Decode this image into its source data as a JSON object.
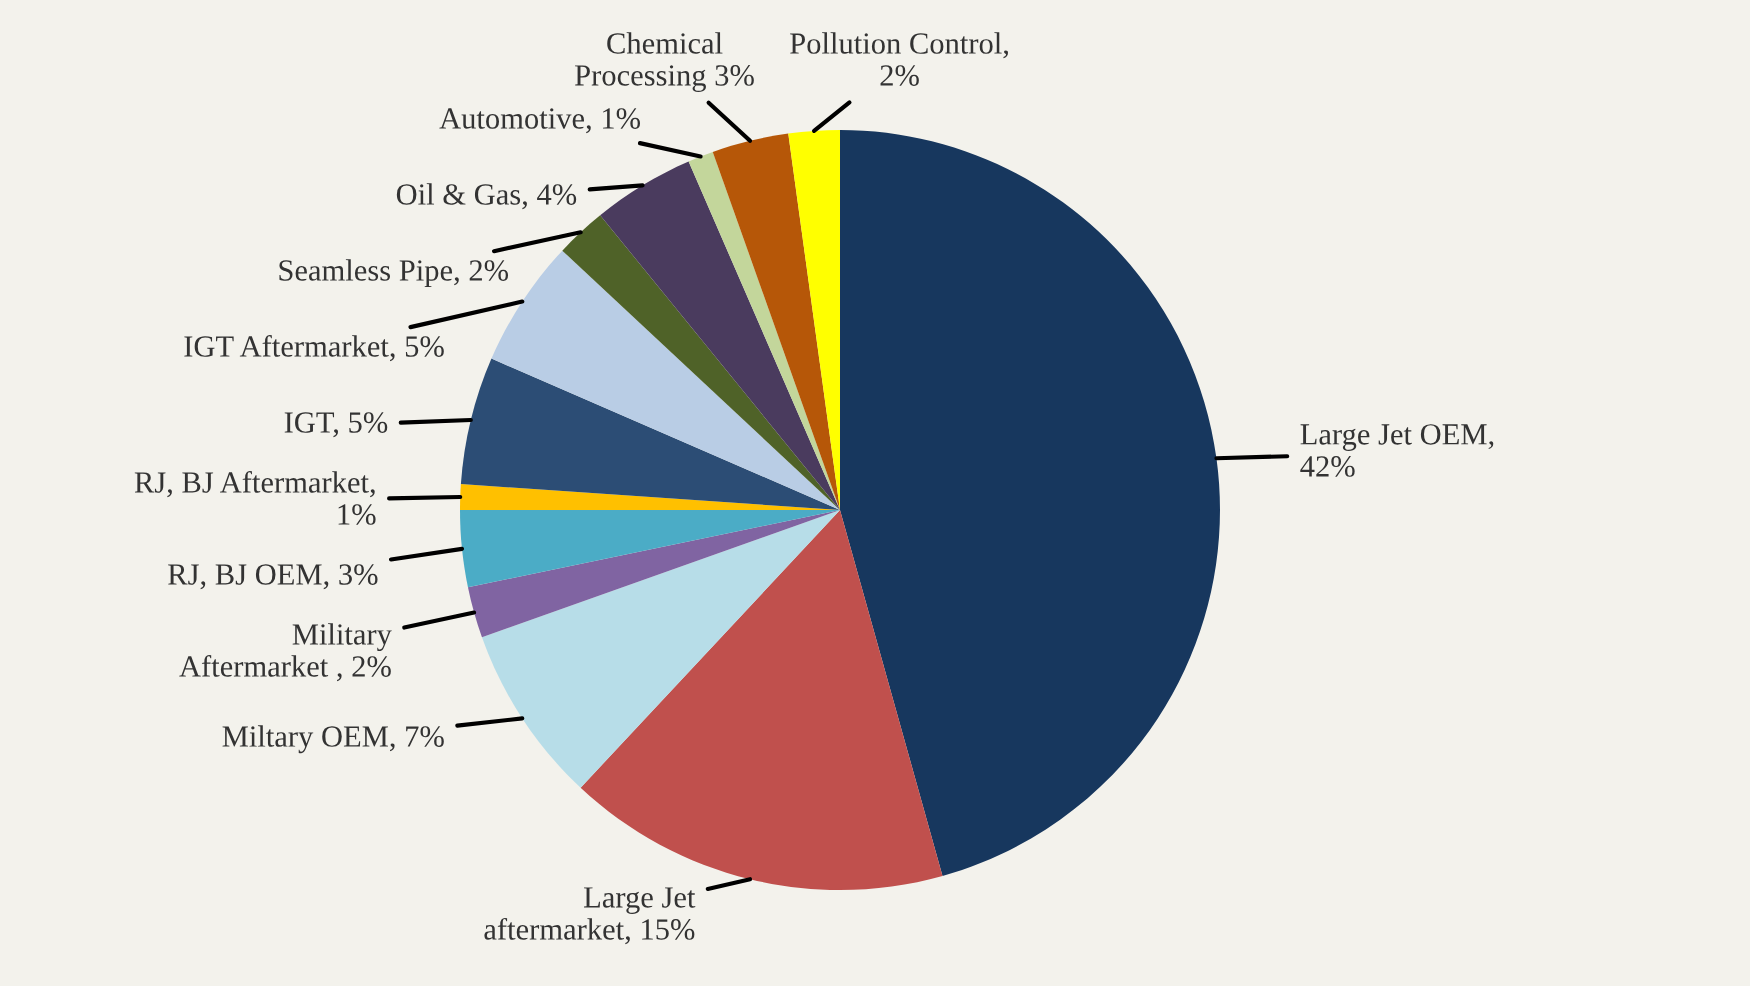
{
  "chart_data": {
    "type": "pie",
    "categories": [
      "Large Jet OEM",
      "Large Jet\naftermarket",
      "Miltary OEM",
      "Military\nAftermarket",
      "RJ, BJ OEM",
      "RJ, BJ Aftermarket",
      "IGT",
      "IGT Aftermarket",
      "Seamless Pipe",
      "Oil & Gas",
      "Automotive",
      "Chemical\nProcessing",
      "Pollution Control"
    ],
    "values": [
      42,
      15,
      7,
      2,
      3,
      1,
      5,
      5,
      2,
      4,
      1,
      3,
      2
    ],
    "value_labels": [
      ",\n42%",
      ", 15%",
      ", 7%",
      " , 2%",
      ", 3%",
      ",\n1%",
      ", 5%",
      ", 5%",
      ", 2%",
      ", 4%",
      ", 1%",
      " 3%",
      ",\n2%"
    ],
    "colors": [
      "#17375e",
      "#c0504d",
      "#b7dde8",
      "#8064a2",
      "#4bacc6",
      "#ffc000",
      "#2c4d75",
      "#b9cde5",
      "#4f6228",
      "#4a3b5e",
      "#c3d69b",
      "#b65708",
      "#ffff00"
    ]
  }
}
